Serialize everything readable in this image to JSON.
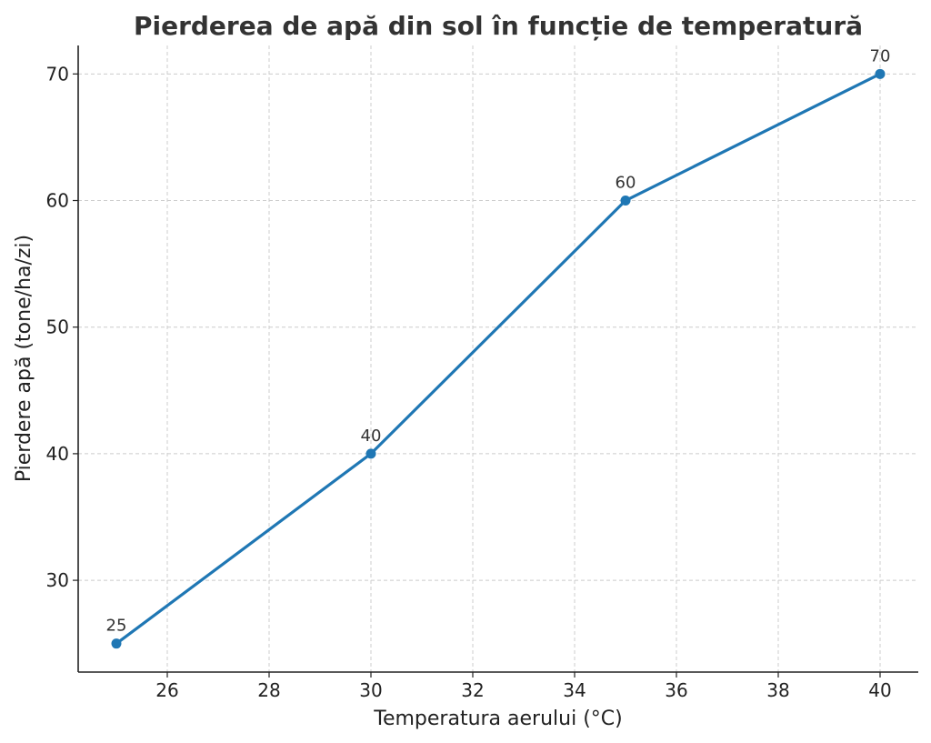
{
  "chart_data": {
    "type": "line",
    "title": "Pierderea de apă din sol în funcție de temperatură",
    "xlabel": "Temperatura aerului (°C)",
    "ylabel": "Pierdere apă (tone/ha/zi)",
    "x": [
      25,
      30,
      35,
      40
    ],
    "series": [
      {
        "values": [
          25,
          40,
          60,
          70
        ],
        "color": "#1f77b4"
      }
    ],
    "data_labels": [
      "25",
      "40",
      "60",
      "70"
    ],
    "xlim": [
      24.25,
      40.75
    ],
    "ylim": [
      22.75,
      72.25
    ],
    "xticks": [
      26,
      28,
      30,
      32,
      34,
      36,
      38,
      40
    ],
    "yticks": [
      30,
      40,
      50,
      60,
      70
    ],
    "grid": true,
    "legend": "none"
  }
}
